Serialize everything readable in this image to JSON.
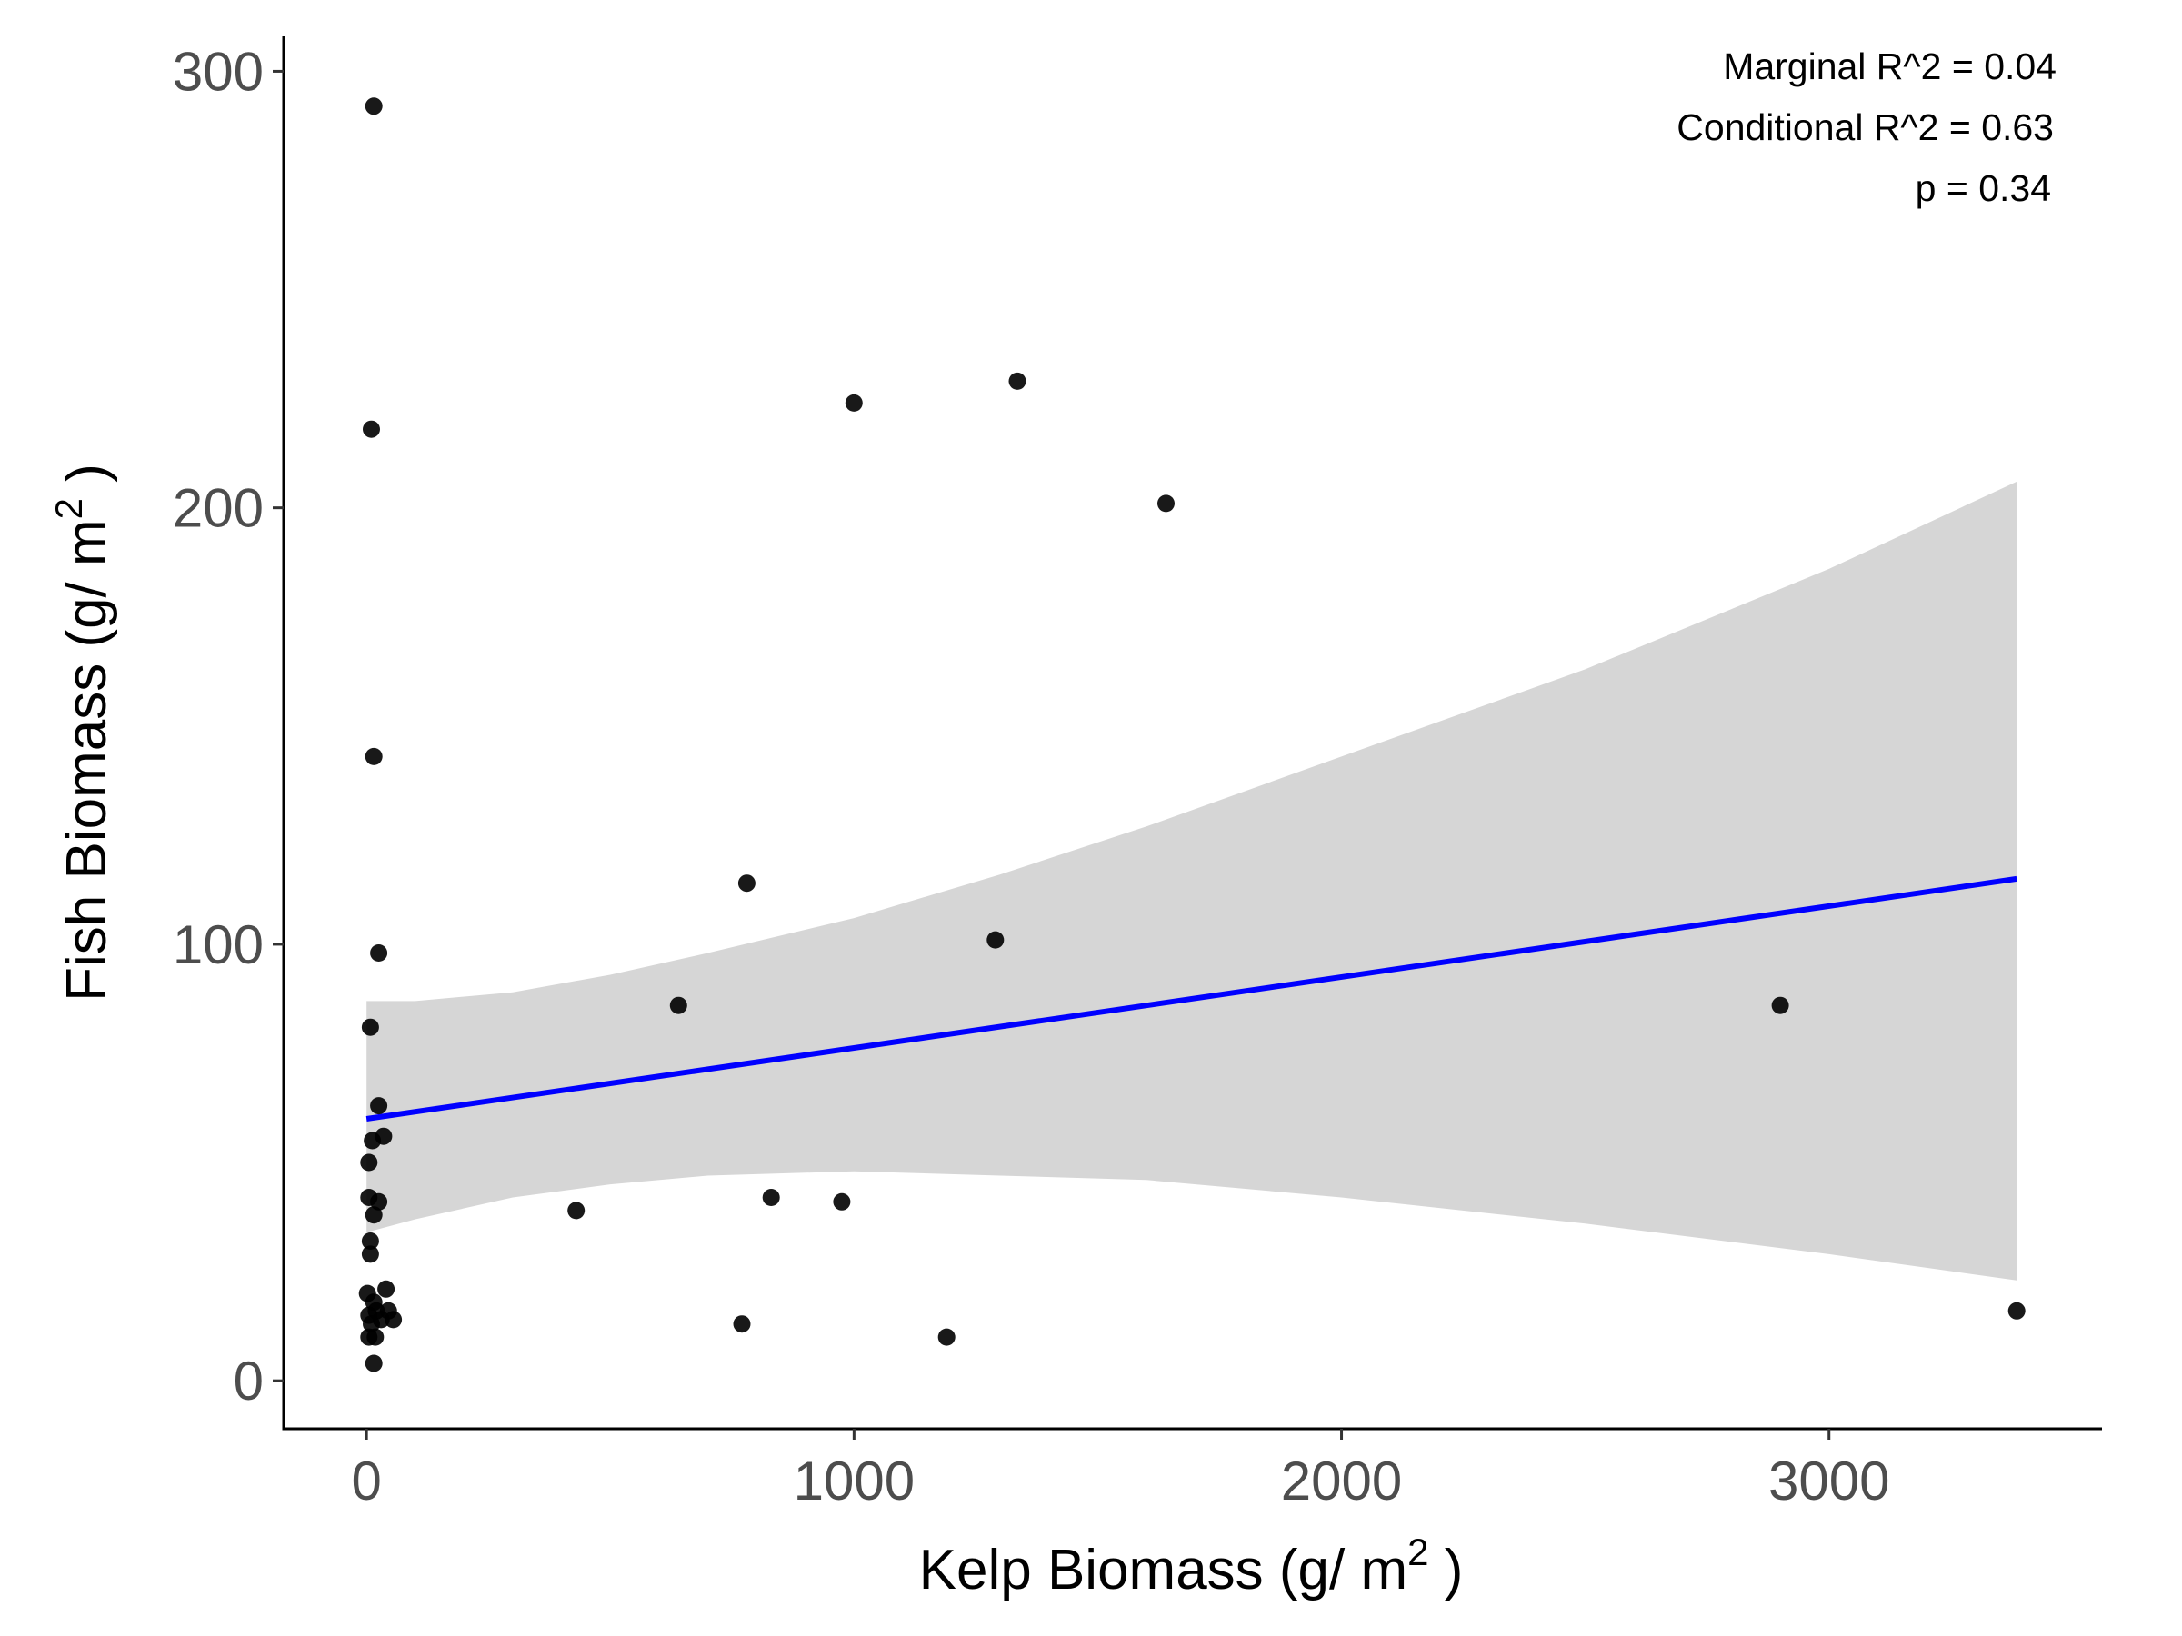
{
  "chart_data": {
    "type": "scatter",
    "title": "",
    "xlabel": {
      "main": "Kelp Biomass (g/ m",
      "sup": "2",
      "tail": " )"
    },
    "ylabel": {
      "main": "Fish Biomass (g/ m",
      "sup": "2",
      "tail": " )"
    },
    "xlim": [
      -170,
      3560
    ],
    "ylim": [
      -11,
      308
    ],
    "x_ticks": [
      0,
      1000,
      2000,
      3000
    ],
    "y_ticks": [
      0,
      100,
      200,
      300
    ],
    "x_tick_labels": [
      "0",
      "1000",
      "2000",
      "3000"
    ],
    "y_tick_labels": [
      "0",
      "100",
      "200",
      "300"
    ],
    "grid": false,
    "legend": "none",
    "points": [
      {
        "x": 15,
        "y": 292
      },
      {
        "x": 10,
        "y": 218
      },
      {
        "x": 15,
        "y": 143
      },
      {
        "x": 25,
        "y": 98
      },
      {
        "x": 8,
        "y": 81
      },
      {
        "x": 25,
        "y": 63
      },
      {
        "x": 35,
        "y": 56
      },
      {
        "x": 12,
        "y": 55
      },
      {
        "x": 5,
        "y": 50
      },
      {
        "x": 5,
        "y": 42
      },
      {
        "x": 25,
        "y": 41
      },
      {
        "x": 15,
        "y": 38
      },
      {
        "x": 8,
        "y": 32
      },
      {
        "x": 8,
        "y": 29
      },
      {
        "x": 40,
        "y": 21
      },
      {
        "x": 2,
        "y": 20
      },
      {
        "x": 15,
        "y": 18
      },
      {
        "x": 45,
        "y": 16
      },
      {
        "x": 20,
        "y": 16
      },
      {
        "x": 5,
        "y": 15
      },
      {
        "x": 55,
        "y": 14
      },
      {
        "x": 30,
        "y": 14
      },
      {
        "x": 10,
        "y": 13
      },
      {
        "x": 5,
        "y": 10
      },
      {
        "x": 18,
        "y": 10
      },
      {
        "x": 15,
        "y": 4
      },
      {
        "x": 430,
        "y": 39
      },
      {
        "x": 640,
        "y": 86
      },
      {
        "x": 780,
        "y": 114
      },
      {
        "x": 770,
        "y": 13
      },
      {
        "x": 830,
        "y": 42
      },
      {
        "x": 975,
        "y": 41
      },
      {
        "x": 1000,
        "y": 224
      },
      {
        "x": 1190,
        "y": 10
      },
      {
        "x": 1290,
        "y": 101
      },
      {
        "x": 1335,
        "y": 229
      },
      {
        "x": 1640,
        "y": 201
      },
      {
        "x": 2900,
        "y": 86
      },
      {
        "x": 3385,
        "y": 16
      }
    ],
    "fit_line": {
      "color": "#0000ff",
      "x": [
        0,
        3385
      ],
      "y": [
        60,
        115
      ]
    },
    "confidence_band": {
      "color": "#d6d6d6",
      "x": [
        0,
        100,
        300,
        500,
        700,
        1000,
        1300,
        1600,
        2000,
        2500,
        3000,
        3385
      ],
      "upper": [
        87,
        87,
        89,
        93,
        98,
        106,
        116,
        127,
        143,
        163,
        186,
        206
      ],
      "lower": [
        34,
        37,
        42,
        45,
        47,
        48,
        47,
        46,
        42,
        36,
        29,
        23
      ]
    },
    "annotations": [
      "Marginal R^2 = 0.04",
      "Conditional R^2 = 0.63",
      "p = 0.34"
    ]
  }
}
